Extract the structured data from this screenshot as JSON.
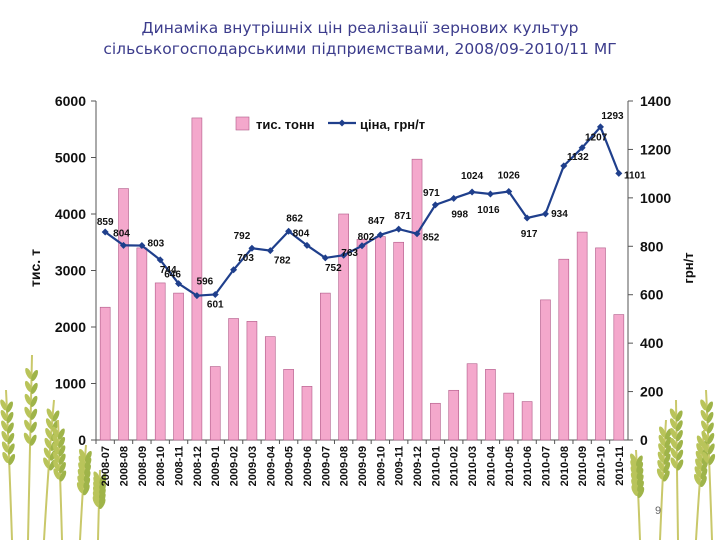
{
  "slide": {
    "title_line1": "Динаміка внутрішніх цін реалізації зернових  культур",
    "title_line2": "сільськогосподарськими підприємствами, 2008/09-2010/11 МГ",
    "page_number": "9"
  },
  "colors": {
    "bars": "#f4a8cc",
    "bar_border": "#b05a88",
    "line": "#1f3f8c",
    "plot_bg": "#ffffff",
    "title": "#3c3c8c"
  },
  "chart_data": {
    "type": "bar",
    "categories": [
      "2008-07",
      "2008-08",
      "2008-09",
      "2008-10",
      "2008-11",
      "2008-12",
      "2009-01",
      "2009-02",
      "2009-03",
      "2009-04",
      "2009-05",
      "2009-06",
      "2009-07",
      "2009-08",
      "2009-09",
      "2009-10",
      "2009-11",
      "2009-12",
      "2010-01",
      "2010-02",
      "2010-03",
      "2010-04",
      "2010-05",
      "2010-06",
      "2010-07",
      "2010-08",
      "2010-09",
      "2010-10",
      "2010-11"
    ],
    "series": [
      {
        "name": "тис. тонн",
        "type": "bar",
        "axis": "left",
        "values": [
          2350,
          4450,
          3400,
          2780,
          2600,
          5700,
          1300,
          2150,
          2100,
          1830,
          1250,
          950,
          2600,
          4000,
          3550,
          3600,
          3500,
          4970,
          650,
          880,
          1350,
          1250,
          830,
          680,
          2480,
          3200,
          3680,
          3400,
          2220
        ]
      },
      {
        "name": "ціна, грн/т",
        "type": "line",
        "axis": "right",
        "values": [
          859,
          804,
          803,
          744,
          646,
          596,
          601,
          703,
          792,
          782,
          862,
          804,
          752,
          763,
          802,
          847,
          871,
          852,
          971,
          998,
          1024,
          1016,
          1026,
          917,
          934,
          1132,
          1207,
          1293,
          1101
        ]
      }
    ],
    "left_axis": {
      "label": "тис. т",
      "min": 0,
      "max": 6000,
      "ticks": [
        "0",
        "1000",
        "2000",
        "3000",
        "4000",
        "5000",
        "6000"
      ]
    },
    "right_axis": {
      "label": "грн/т",
      "min": 0,
      "max": 1400,
      "ticks": [
        "0",
        "200",
        "400",
        "600",
        "800",
        "1000",
        "1200",
        "1400"
      ]
    },
    "legend": {
      "placement": "top-left",
      "items": [
        "тис. тонн",
        "ціна, грн/т"
      ]
    },
    "grid": false
  }
}
